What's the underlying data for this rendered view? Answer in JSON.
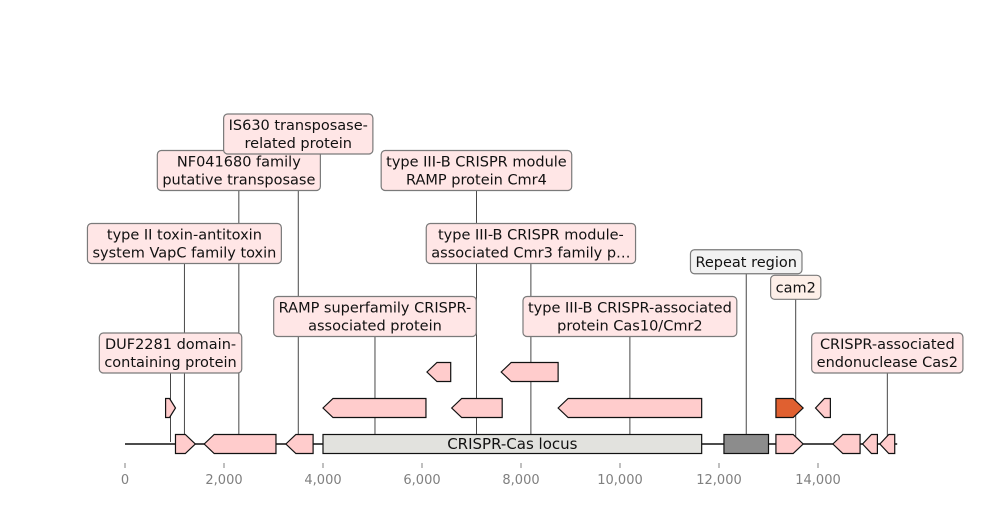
{
  "axis": {
    "min": 0,
    "max": 15600,
    "ticks": [
      {
        "value": 0,
        "label": "0"
      },
      {
        "value": 2000,
        "label": "2,000"
      },
      {
        "value": 4000,
        "label": "4,000"
      },
      {
        "value": 6000,
        "label": "6,000"
      },
      {
        "value": 8000,
        "label": "8,000"
      },
      {
        "value": 10000,
        "label": "10,000"
      },
      {
        "value": 12000,
        "label": "12,000"
      },
      {
        "value": 14000,
        "label": "14,000"
      }
    ]
  },
  "colors": {
    "gene": "#ffcccc",
    "gene_highlight": "#e06030",
    "locus": "#e2e2de",
    "repeat": "#8c8c8c",
    "label_box": "#ffe6e6",
    "label_box_repeat": "#f2f2f2",
    "label_box_cam2": "#fdefe8",
    "outline": "#111111",
    "axis_text": "#808080"
  },
  "regions": [
    {
      "name": "locus",
      "start": 4000,
      "end": 11650,
      "text": "CRISPR-Cas locus"
    },
    {
      "name": "repeat",
      "start": 12100,
      "end": 13000
    }
  ],
  "features": [
    {
      "start": 820,
      "end": 1020,
      "strand": 1,
      "level": 1
    },
    {
      "start": 1020,
      "end": 1420,
      "strand": 1,
      "level": 0
    },
    {
      "start": 1600,
      "end": 3050,
      "strand": -1,
      "level": 0
    },
    {
      "start": 3250,
      "end": 3800,
      "strand": -1,
      "level": 0
    },
    {
      "start": 4000,
      "end": 6080,
      "strand": -1,
      "level": 1
    },
    {
      "start": 6100,
      "end": 6580,
      "strand": -1,
      "level": 2
    },
    {
      "start": 6600,
      "end": 7620,
      "strand": -1,
      "level": 1
    },
    {
      "start": 7600,
      "end": 8750,
      "strand": -1,
      "level": 2
    },
    {
      "start": 8750,
      "end": 11650,
      "strand": -1,
      "level": 1
    },
    {
      "start": 13150,
      "end": 13700,
      "strand": 1,
      "level": 1,
      "highlight": true
    },
    {
      "start": 13150,
      "end": 13700,
      "strand": 1,
      "level": 0
    },
    {
      "start": 13950,
      "end": 14250,
      "strand": -1,
      "level": 1
    },
    {
      "start": 14300,
      "end": 14850,
      "strand": -1,
      "level": 0
    },
    {
      "start": 14900,
      "end": 15200,
      "strand": -1,
      "level": 0
    },
    {
      "start": 15250,
      "end": 15550,
      "strand": -1,
      "level": 0
    }
  ],
  "annotations": [
    {
      "lines": [
        "DUF2281 domain-",
        "containing protein"
      ],
      "x": 920,
      "anchor": 920,
      "level": 0
    },
    {
      "lines": [
        "type II toxin-antitoxin",
        "system VapC family toxin"
      ],
      "x": 1200,
      "anchor": 1200,
      "level": 3
    },
    {
      "lines": [
        "NF041680 family",
        "putative transposase"
      ],
      "x": 2300,
      "anchor": 2300,
      "level": 5
    },
    {
      "lines": [
        "IS630 transposase-",
        "related protein"
      ],
      "x": 3500,
      "anchor": 3500,
      "level": 6
    },
    {
      "lines": [
        "RAMP superfamily CRISPR-",
        "associated protein"
      ],
      "x": 5050,
      "anchor": 5050,
      "level": 1
    },
    {
      "lines": [
        "type III-B CRISPR module",
        "RAMP protein Cmr4"
      ],
      "x": 7100,
      "anchor": 7100,
      "level": 5
    },
    {
      "lines": [
        "type III-B CRISPR module-",
        "associated Cmr3 family p…"
      ],
      "x": 8200,
      "anchor": 8200,
      "level": 3
    },
    {
      "lines": [
        "type III-B CRISPR-associated",
        "protein Cas10/Cmr2"
      ],
      "x": 10200,
      "anchor": 10200,
      "level": 1
    },
    {
      "lines": [
        "Repeat region"
      ],
      "x": 12550,
      "anchor": 12550,
      "level": 2.5,
      "box": "repeat"
    },
    {
      "lines": [
        "cam2"
      ],
      "x": 13550,
      "anchor": 13550,
      "level": 1.8,
      "box": "cam2"
    },
    {
      "lines": [
        "CRISPR-associated",
        "endonuclease Cas2"
      ],
      "x": 15400,
      "anchor": 15400,
      "level": 0
    }
  ]
}
